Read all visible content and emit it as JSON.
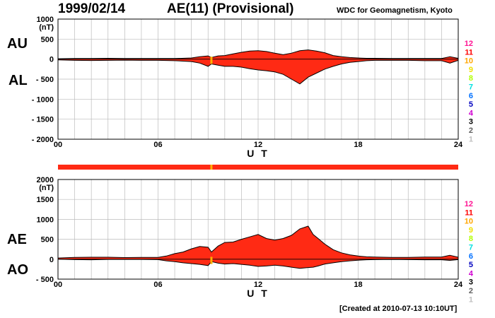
{
  "header": {
    "date": "1999/02/14",
    "title": "AE(11) (Provisional)",
    "source": "WDC for Geomagnetism, Kyoto"
  },
  "footer": {
    "created": "[Created at 2010-07-13 10:10UT]"
  },
  "activity_scale": {
    "levels": [
      "12",
      "11",
      "10",
      "9",
      "8",
      "7",
      "6",
      "5",
      "4",
      "3",
      "2",
      "1"
    ],
    "colors": [
      "#ff1493",
      "#ff0000",
      "#ffa500",
      "#f0e000",
      "#b0ff00",
      "#00e0e0",
      "#0070ff",
      "#0000c0",
      "#d000d0",
      "#000000",
      "#606060",
      "#c0c0c0"
    ]
  },
  "chart_data": [
    {
      "type": "area",
      "panel": "top",
      "labels": [
        "AU",
        "AL"
      ],
      "ylabel": "(nT)",
      "xlabel": "U T",
      "ylim": [
        -2000,
        1000
      ],
      "yticks": [
        1000,
        500,
        0,
        -500,
        -1000,
        -1500,
        -2000
      ],
      "ytick_labels": [
        "1000",
        "500",
        "0",
        "- 500",
        "- 1000",
        "- 1500",
        "- 2000"
      ],
      "xlim": [
        0,
        24
      ],
      "xticks": [
        0,
        6,
        12,
        18,
        24
      ],
      "xtick_labels": [
        "00",
        "06",
        "12",
        "18",
        "24"
      ],
      "fill_color": "#ff2a14",
      "series": [
        {
          "name": "AU",
          "x": [
            0,
            1,
            2,
            3,
            4,
            5,
            6,
            7,
            8,
            8.5,
            9,
            9.2,
            9.6,
            10,
            10.5,
            11,
            11.5,
            12,
            12.5,
            13,
            13.5,
            14,
            14.5,
            15,
            15.5,
            16,
            16.5,
            17,
            17.5,
            18,
            18.5,
            19,
            20,
            21,
            22,
            23,
            23.5,
            24
          ],
          "values": [
            10,
            15,
            15,
            20,
            15,
            15,
            15,
            15,
            30,
            60,
            80,
            40,
            80,
            90,
            130,
            170,
            200,
            210,
            190,
            150,
            110,
            150,
            210,
            230,
            200,
            160,
            90,
            60,
            40,
            30,
            20,
            20,
            15,
            15,
            15,
            15,
            60,
            20
          ]
        },
        {
          "name": "AL",
          "x": [
            0,
            1,
            2,
            3,
            4,
            5,
            6,
            7,
            8,
            8.5,
            9,
            9.2,
            9.6,
            10,
            10.5,
            11,
            11.5,
            12,
            12.5,
            13,
            13.5,
            14,
            14.5,
            15,
            15.5,
            16,
            16.5,
            17,
            17.5,
            18,
            18.5,
            19,
            20,
            21,
            22,
            23,
            23.5,
            24
          ],
          "values": [
            -20,
            -30,
            -35,
            -30,
            -25,
            -30,
            -30,
            -40,
            -60,
            -100,
            -180,
            -120,
            -150,
            -180,
            -180,
            -200,
            -240,
            -270,
            -290,
            -320,
            -380,
            -500,
            -620,
            -450,
            -350,
            -250,
            -180,
            -120,
            -80,
            -60,
            -40,
            -30,
            -30,
            -30,
            -40,
            -40,
            -100,
            -30
          ]
        }
      ]
    },
    {
      "type": "area",
      "panel": "bottom",
      "labels": [
        "AE",
        "AO"
      ],
      "ylabel": "(nT)",
      "xlabel": "U T",
      "ylim": [
        -500,
        2000
      ],
      "yticks": [
        2000,
        1500,
        1000,
        500,
        0,
        -500
      ],
      "ytick_labels": [
        "2000",
        "1500",
        "1000",
        "500",
        "0",
        "- 500"
      ],
      "xlim": [
        0,
        24
      ],
      "xticks": [
        0,
        6,
        12,
        18,
        24
      ],
      "xtick_labels": [
        "00",
        "06",
        "12",
        "18",
        "24"
      ],
      "fill_color": "#ff2a14",
      "series": [
        {
          "name": "AE",
          "x": [
            0,
            1,
            2,
            3,
            4,
            5,
            6,
            6.5,
            7,
            7.5,
            8,
            8.5,
            9,
            9.2,
            9.6,
            10,
            10.5,
            11,
            11.5,
            12,
            12.5,
            13,
            13.5,
            14,
            14.5,
            15,
            15.3,
            15.6,
            16,
            16.5,
            17,
            17.5,
            18,
            18.5,
            19,
            20,
            21,
            22,
            23,
            23.5,
            24
          ],
          "values": [
            30,
            45,
            50,
            50,
            40,
            45,
            45,
            80,
            140,
            180,
            260,
            320,
            300,
            180,
            330,
            420,
            430,
            500,
            560,
            620,
            520,
            480,
            520,
            600,
            760,
            830,
            620,
            520,
            380,
            240,
            160,
            110,
            80,
            60,
            55,
            45,
            45,
            55,
            55,
            100,
            50
          ]
        },
        {
          "name": "AO",
          "x": [
            0,
            1,
            2,
            3,
            4,
            5,
            6,
            6.5,
            7,
            7.5,
            8,
            8.5,
            9,
            9.2,
            9.6,
            10,
            10.5,
            11,
            11.5,
            12,
            12.5,
            13,
            13.5,
            14,
            14.5,
            15,
            15.3,
            15.6,
            16,
            16.5,
            17,
            17.5,
            18,
            18.5,
            19,
            20,
            21,
            22,
            23,
            23.5,
            24
          ],
          "values": [
            0,
            -10,
            -15,
            -5,
            -5,
            -5,
            -10,
            -40,
            -60,
            -90,
            -110,
            -130,
            -160,
            -60,
            -100,
            -120,
            -110,
            -130,
            -150,
            -180,
            -170,
            -150,
            -170,
            -200,
            -230,
            -210,
            -200,
            -170,
            -120,
            -90,
            -60,
            -40,
            -25,
            -15,
            -10,
            -5,
            -10,
            -15,
            -15,
            -30,
            -10
          ]
        }
      ]
    }
  ]
}
